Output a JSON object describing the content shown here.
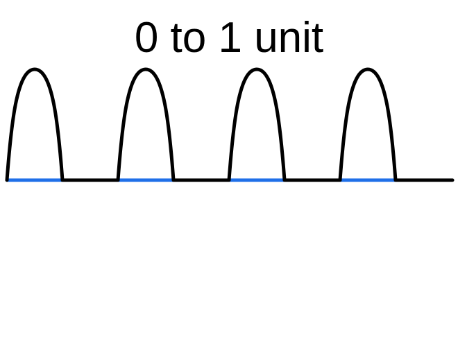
{
  "diagram": {
    "label": "0 to 1 unit",
    "pulse_count": 4,
    "colors": {
      "background": "#ffffff",
      "wave": "#000000",
      "unit_segment": "#1f6fe8"
    }
  }
}
